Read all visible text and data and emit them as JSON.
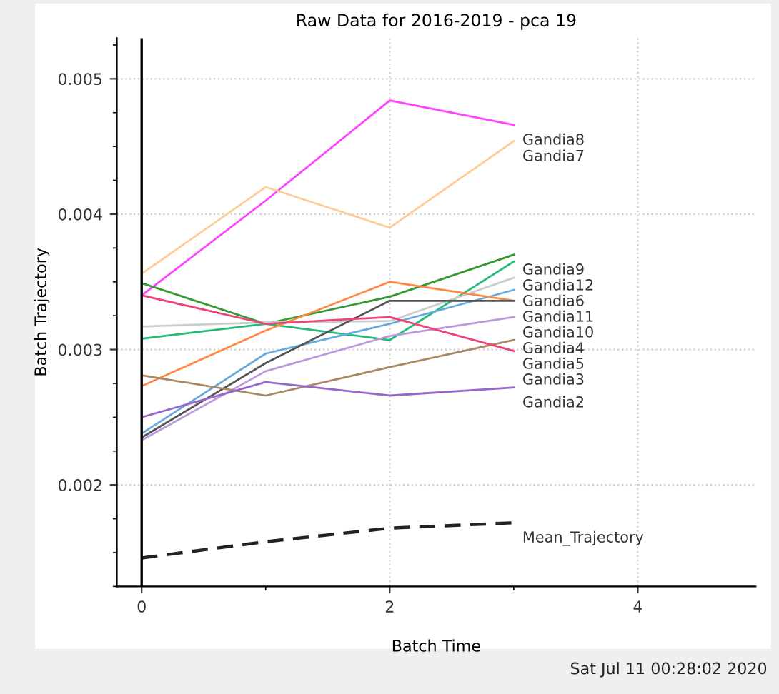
{
  "chart_data": {
    "type": "line",
    "title": "Raw Data for 2016-2019 - pca 19",
    "xlabel": "Batch Time",
    "ylabel": "Batch Trajectory",
    "x": [
      0,
      1,
      2,
      3
    ],
    "series": [
      {
        "name": "Gandia8",
        "color": "#ff44ff",
        "values": [
          0.0034,
          0.0041,
          0.00484,
          0.00466
        ]
      },
      {
        "name": "Gandia7",
        "color": "#ffcc99",
        "values": [
          0.00356,
          0.0042,
          0.0039,
          0.00454
        ]
      },
      {
        "name": "Gandia9",
        "color": "#339933",
        "values": [
          0.00349,
          0.00319,
          0.00339,
          0.0037
        ]
      },
      {
        "name": "Gandia12",
        "color": "#22bb77",
        "values": [
          0.00308,
          0.00319,
          0.00307,
          0.00365
        ]
      },
      {
        "name": "Gandia6",
        "color": "#cccccc",
        "values": [
          0.00317,
          0.0032,
          0.00321,
          0.00353
        ]
      },
      {
        "name": "Gandia11",
        "color": "#66aadd",
        "values": [
          0.00238,
          0.00297,
          0.00319,
          0.00344
        ]
      },
      {
        "color": "#ff8844",
        "values": [
          0.00273,
          0.00314,
          0.0035,
          0.00336
        ]
      },
      {
        "name": "Gandia10",
        "color": "#555555",
        "values": [
          0.00235,
          0.0029,
          0.00336,
          0.00336
        ]
      },
      {
        "name": "Gandia4",
        "color": "#bb99dd",
        "values": [
          0.00233,
          0.00284,
          0.0031,
          0.00324
        ]
      },
      {
        "name": "Gandia5",
        "color": "#aa8866",
        "values": [
          0.00281,
          0.00266,
          0.00287,
          0.00307
        ]
      },
      {
        "name": "Gandia3",
        "color": "#ee4477",
        "values": [
          0.0034,
          0.00319,
          0.00324,
          0.00299
        ]
      },
      {
        "name": "Gandia2",
        "color": "#9966cc",
        "values": [
          0.0025,
          0.00276,
          0.00266,
          0.00272
        ]
      },
      {
        "name": "Mean_Trajectory",
        "color": "#222222",
        "line_style": "dashed",
        "values": [
          0.00146,
          0.00158,
          0.00168,
          0.00172
        ]
      }
    ],
    "xlim": [
      -0.2,
      4.95
    ],
    "ylim": [
      0.00125,
      0.0053
    ],
    "xticks": [
      0,
      2,
      4
    ],
    "yticks": [
      0.002,
      0.003,
      0.004,
      0.005
    ],
    "grid": true,
    "marker": "none",
    "line_style": "solid",
    "ref_lines": [
      {
        "axis": "x",
        "value": 0,
        "color": "#000000"
      }
    ],
    "annotations": [
      "Sat Jul 11 00:28:02 2020"
    ]
  }
}
